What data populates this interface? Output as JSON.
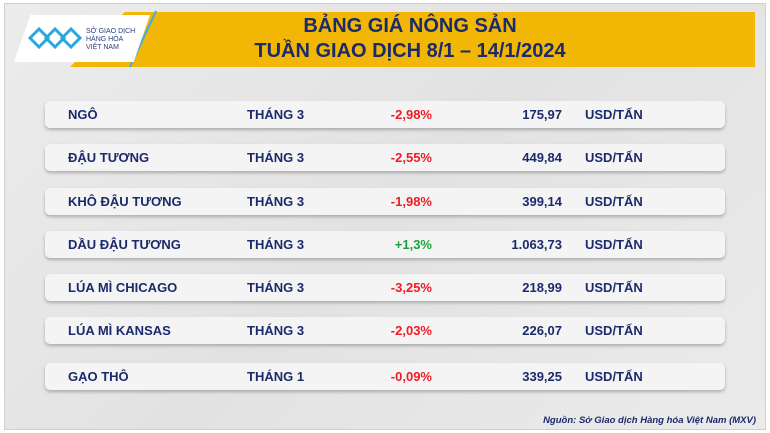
{
  "logo": {
    "line1": "SỞ GIAO DỊCH",
    "line2": "HÀNG HÓA",
    "line3": "VIỆT NAM"
  },
  "title": {
    "line1": "BẢNG GIÁ NÔNG SẢN",
    "line2": "TUẦN GIAO DỊCH 8/1 – 14/1/2024"
  },
  "colors": {
    "banner": "#f2b705",
    "text": "#1b2a6b",
    "negative": "#ee1c24",
    "positive": "#1fa23a"
  },
  "rows": [
    {
      "name": "NGÔ",
      "month": "THÁNG 3",
      "change": "-2,98%",
      "price": "175,97",
      "unit": "USD/TẤN",
      "dir": "neg"
    },
    {
      "name": "ĐẬU TƯƠNG",
      "month": "THÁNG 3",
      "change": "-2,55%",
      "price": "449,84",
      "unit": "USD/TẤN",
      "dir": "neg"
    },
    {
      "name": "KHÔ ĐẬU TƯƠNG",
      "month": "THÁNG 3",
      "change": "-1,98%",
      "price": "399,14",
      "unit": "USD/TẤN",
      "dir": "neg"
    },
    {
      "name": "DẦU ĐẬU TƯƠNG",
      "month": "THÁNG 3",
      "change": "+1,3%",
      "price": "1.063,73",
      "unit": "USD/TẤN",
      "dir": "pos"
    },
    {
      "name": "LÚA MÌ CHICAGO",
      "month": "THÁNG 3",
      "change": "-3,25%",
      "price": "218,99",
      "unit": "USD/TẤN",
      "dir": "neg"
    },
    {
      "name": "LÚA MÌ KANSAS",
      "month": "THÁNG 3",
      "change": "-2,03%",
      "price": "226,07",
      "unit": "USD/TẤN",
      "dir": "neg"
    },
    {
      "name": "GẠO THÔ",
      "month": "THÁNG 1",
      "change": "-0,09%",
      "price": "339,25",
      "unit": "USD/TẤN",
      "dir": "neg"
    }
  ],
  "source": "Nguồn: Sở Giao dịch Hàng hóa Việt Nam (MXV)"
}
